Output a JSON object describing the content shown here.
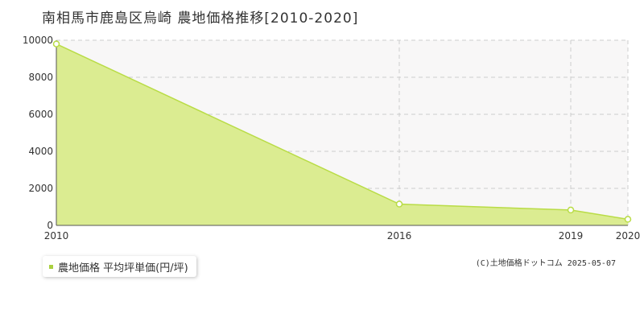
{
  "title": "南相馬市鹿島区烏崎 農地価格推移[2010-2020]",
  "legend_label": "農地価格 平均坪単価(円/坪)",
  "copyright": "(C)土地価格ドットコム 2025-05-07",
  "colors": {
    "fill": "#dbec91",
    "line": "#b9dc46",
    "marker": "#b9dc46",
    "plot_bg": "#f8f7f7",
    "grid": "#cccccc"
  },
  "chart_data": {
    "type": "area",
    "title": "南相馬市鹿島区烏崎 農地価格推移[2010-2020]",
    "xlabel": "",
    "ylabel": "",
    "x": [
      2010,
      2016,
      2019,
      2020
    ],
    "x_tick_labels": [
      "2010",
      "2016",
      "2019",
      "2020"
    ],
    "series": [
      {
        "name": "農地価格 平均坪単価(円/坪)",
        "values": [
          9800,
          1150,
          830,
          330
        ]
      }
    ],
    "ylim": [
      0,
      10000
    ],
    "y_ticks": [
      0,
      2000,
      4000,
      6000,
      8000,
      10000
    ],
    "xlim": [
      2010,
      2020
    ],
    "grid": true,
    "legend_position": "bottom-left"
  }
}
